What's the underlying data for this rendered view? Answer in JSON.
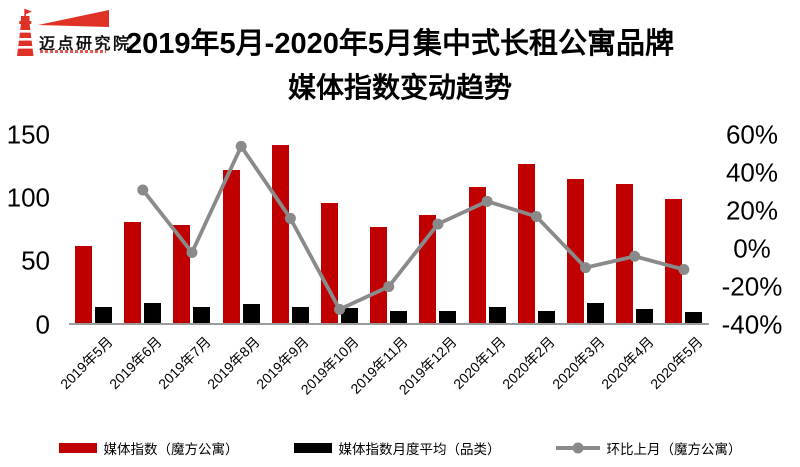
{
  "logo": {
    "name": "迈点研究院",
    "icon": "lighthouse-icon",
    "accent_color": "#e03126"
  },
  "title": {
    "line1": "2019年5月-2020年5月集中式长租公寓品牌",
    "line2": "媒体指数变动趋势"
  },
  "chart_data": {
    "type": "bar",
    "subtype": "combo-bar-line-dual-axis",
    "title": "2019年5月-2020年5月集中式长租公寓品牌媒体指数变动趋势",
    "categories": [
      "2019年5月",
      "2019年6月",
      "2019年7月",
      "2019年8月",
      "2019年9月",
      "2019年10月",
      "2019年11月",
      "2019年12月",
      "2020年1月",
      "2020年2月",
      "2020年3月",
      "2020年4月",
      "2020年5月"
    ],
    "series": [
      {
        "name": "媒体指数（魔方公寓）",
        "type": "bar",
        "axis": "left",
        "color": "#c00000",
        "values": [
          62,
          81,
          79,
          122,
          142,
          96,
          77,
          87,
          109,
          127,
          115,
          111,
          99
        ]
      },
      {
        "name": "媒体指数月度平均（品类）",
        "type": "bar",
        "axis": "left",
        "color": "#000000",
        "values": [
          14,
          17,
          14,
          16,
          14,
          13,
          11,
          11,
          14,
          11,
          17,
          12,
          10
        ]
      },
      {
        "name": "环比上月（魔方公寓）",
        "type": "line",
        "axis": "right",
        "color": "#8a8a8a",
        "unit": "%",
        "values": [
          null,
          31,
          -2,
          54,
          16,
          -32,
          -20,
          13,
          25,
          17,
          -10,
          -4,
          -11
        ]
      }
    ],
    "left_axis": {
      "min": 0,
      "max": 150,
      "tick_labels": [
        "150",
        "100",
        "50",
        "0"
      ]
    },
    "right_axis": {
      "min": -40,
      "max": 60,
      "tick_labels": [
        "60%",
        "40%",
        "20%",
        "0%",
        "-20%",
        "-40%"
      ]
    },
    "grid": false,
    "legend_position": "bottom",
    "axis_line_color": "#9b9b9b"
  }
}
